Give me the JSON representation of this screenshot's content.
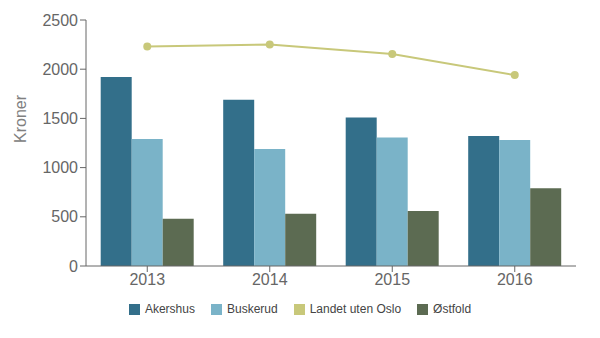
{
  "chart_data": {
    "type": "bar",
    "categories": [
      "2013",
      "2014",
      "2015",
      "2016"
    ],
    "ylabel": "Kroner",
    "ylim": [
      0,
      2500
    ],
    "yticks": [
      0,
      500,
      1000,
      1500,
      2000,
      2500
    ],
    "grid": false,
    "series": [
      {
        "name": "Akershus",
        "type": "bar",
        "color": "#336f8a",
        "values": [
          1921,
          1690,
          1510,
          1320
        ]
      },
      {
        "name": "Buskerud",
        "type": "bar",
        "color": "#7ab3c8",
        "values": [
          1290,
          1190,
          1305,
          1280
        ]
      },
      {
        "name": "Landet uten Oslo",
        "type": "line",
        "marker": "circle",
        "color": "#c8c87a",
        "values": [
          2230,
          2250,
          2155,
          1940
        ]
      },
      {
        "name": "Østfold",
        "type": "bar",
        "color": "#5c6b52",
        "values": [
          480,
          530,
          560,
          790
        ]
      }
    ]
  }
}
